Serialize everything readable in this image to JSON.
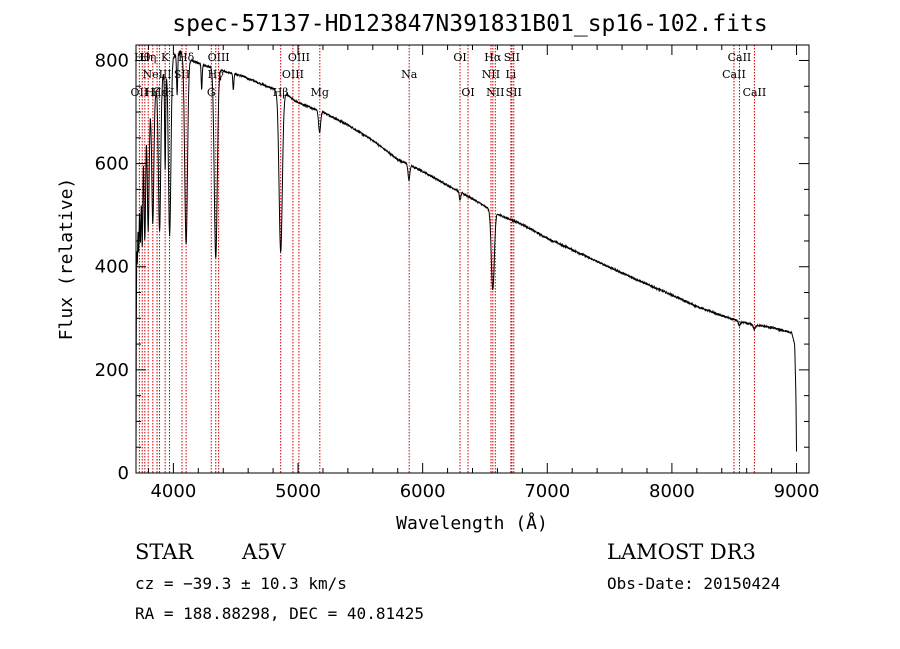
{
  "chart_data": {
    "type": "line",
    "title": "spec-57137-HD123847N391831B01_sp16-102.fits",
    "xlabel": "Wavelength (Å)",
    "ylabel": "Flux (relative)",
    "xlim": [
      3700,
      9100
    ],
    "ylim": [
      0,
      830
    ],
    "xticks": [
      4000,
      5000,
      6000,
      7000,
      8000,
      9000
    ],
    "yticks": [
      0,
      200,
      400,
      600,
      800
    ],
    "continuum": [
      [
        3700,
        0
      ],
      [
        3702,
        250
      ],
      [
        3706,
        480
      ],
      [
        3712,
        560
      ],
      [
        3725,
        620
      ],
      [
        3740,
        640
      ],
      [
        3780,
        680
      ],
      [
        3830,
        720
      ],
      [
        3900,
        760
      ],
      [
        3950,
        790
      ],
      [
        4010,
        810
      ],
      [
        4060,
        815
      ],
      [
        4140,
        800
      ],
      [
        4250,
        790
      ],
      [
        4400,
        780
      ],
      [
        4550,
        770
      ],
      [
        4700,
        755
      ],
      [
        4800,
        745
      ],
      [
        4900,
        735
      ],
      [
        5000,
        718
      ],
      [
        5200,
        700
      ],
      [
        5400,
        675
      ],
      [
        5600,
        645
      ],
      [
        5800,
        608
      ],
      [
        6000,
        585
      ],
      [
        6200,
        558
      ],
      [
        6400,
        532
      ],
      [
        6600,
        502
      ],
      [
        6800,
        482
      ],
      [
        7000,
        455
      ],
      [
        7200,
        433
      ],
      [
        7400,
        410
      ],
      [
        7600,
        388
      ],
      [
        7800,
        366
      ],
      [
        8000,
        345
      ],
      [
        8200,
        323
      ],
      [
        8400,
        305
      ],
      [
        8600,
        290
      ],
      [
        8800,
        282
      ],
      [
        8960,
        272
      ],
      [
        8985,
        250
      ],
      [
        8995,
        150
      ],
      [
        9000,
        40
      ]
    ],
    "absorption_features": [
      {
        "center": 3711,
        "depth": 0.25,
        "width": 4
      },
      {
        "center": 3722,
        "depth": 0.28,
        "width": 4
      },
      {
        "center": 3735,
        "depth": 0.3,
        "width": 5
      },
      {
        "center": 3750,
        "depth": 0.32,
        "width": 5
      },
      {
        "center": 3771,
        "depth": 0.33,
        "width": 6
      },
      {
        "center": 3798,
        "depth": 0.32,
        "width": 7
      },
      {
        "center": 3835,
        "depth": 0.33,
        "width": 8
      },
      {
        "center": 3889,
        "depth": 0.38,
        "width": 9
      },
      {
        "center": 3934,
        "depth": 0.25,
        "width": 4
      },
      {
        "center": 3970,
        "depth": 0.42,
        "width": 10
      },
      {
        "center": 4030,
        "depth": 0.1,
        "width": 4
      },
      {
        "center": 4102,
        "depth": 0.45,
        "width": 11
      },
      {
        "center": 4227,
        "depth": 0.06,
        "width": 4
      },
      {
        "center": 4340,
        "depth": 0.47,
        "width": 12
      },
      {
        "center": 4481,
        "depth": 0.04,
        "width": 4
      },
      {
        "center": 4861,
        "depth": 0.42,
        "width": 13
      },
      {
        "center": 5173,
        "depth": 0.06,
        "width": 8
      },
      {
        "center": 5890,
        "depth": 0.05,
        "width": 7
      },
      {
        "center": 6300,
        "depth": 0.03,
        "width": 6
      },
      {
        "center": 6563,
        "depth": 0.3,
        "width": 12
      },
      {
        "center": 8542,
        "depth": 0.03,
        "width": 8
      },
      {
        "center": 8662,
        "depth": 0.03,
        "width": 8
      }
    ],
    "spectral_lines": [
      {
        "wavelength": 3727,
        "label": "OII",
        "row": 2
      },
      {
        "wavelength": 3750,
        "label": "Hθ",
        "row": 0
      },
      {
        "wavelength": 3771,
        "label": "",
        "row": 0
      },
      {
        "wavelength": 3798,
        "label": "Hη",
        "row": 0
      },
      {
        "wavelength": 3835,
        "label": "Hζ",
        "row": 2
      },
      {
        "wavelength": 3869,
        "label": "NeIII",
        "row": 1
      },
      {
        "wavelength": 3889,
        "label": "Hε",
        "row": 2
      },
      {
        "wavelength": 3934,
        "label": "K",
        "row": 0
      },
      {
        "wavelength": 3969,
        "label": "H",
        "row": 2
      },
      {
        "wavelength": 4069,
        "label": "SII",
        "row": 1
      },
      {
        "wavelength": 4102,
        "label": "Hδ",
        "row": 0
      },
      {
        "wavelength": 4304,
        "label": "G",
        "row": 2
      },
      {
        "wavelength": 4340,
        "label": "Hγ",
        "row": 1
      },
      {
        "wavelength": 4363,
        "label": "OIII",
        "row": 0
      },
      {
        "wavelength": 4861,
        "label": "Hβ",
        "row": 2
      },
      {
        "wavelength": 4959,
        "label": "OIII",
        "row": 1
      },
      {
        "wavelength": 5007,
        "label": "OIII",
        "row": 0
      },
      {
        "wavelength": 5175,
        "label": "Mg",
        "row": 2
      },
      {
        "wavelength": 5892,
        "label": "Na",
        "row": 1
      },
      {
        "wavelength": 6300,
        "label": "OI",
        "row": 0
      },
      {
        "wavelength": 6364,
        "label": "OI",
        "row": 2
      },
      {
        "wavelength": 6548,
        "label": "NII",
        "row": 1
      },
      {
        "wavelength": 6563,
        "label": "Hα",
        "row": 0
      },
      {
        "wavelength": 6583,
        "label": "NII",
        "row": 2
      },
      {
        "wavelength": 6708,
        "label": "Li",
        "row": 1
      },
      {
        "wavelength": 6716,
        "label": "SII",
        "row": 0
      },
      {
        "wavelength": 6731,
        "label": "SII",
        "row": 2
      },
      {
        "wavelength": 8498,
        "label": "CaII",
        "row": 1
      },
      {
        "wavelength": 8542,
        "label": "CaII",
        "row": 0
      },
      {
        "wavelength": 8662,
        "label": "CaII",
        "row": 2
      }
    ]
  },
  "info": {
    "object_class": "STAR",
    "subclass": "A5V",
    "survey": "LAMOST DR3",
    "redshift": "cz = −39.3 ± 10.3 km/s",
    "obs_date": "Obs-Date: 20150424",
    "coords": "RA = 188.88298, DEC =  40.81425"
  },
  "colors": {
    "line_marker": "#cc0000",
    "spectrum": "#000000"
  }
}
